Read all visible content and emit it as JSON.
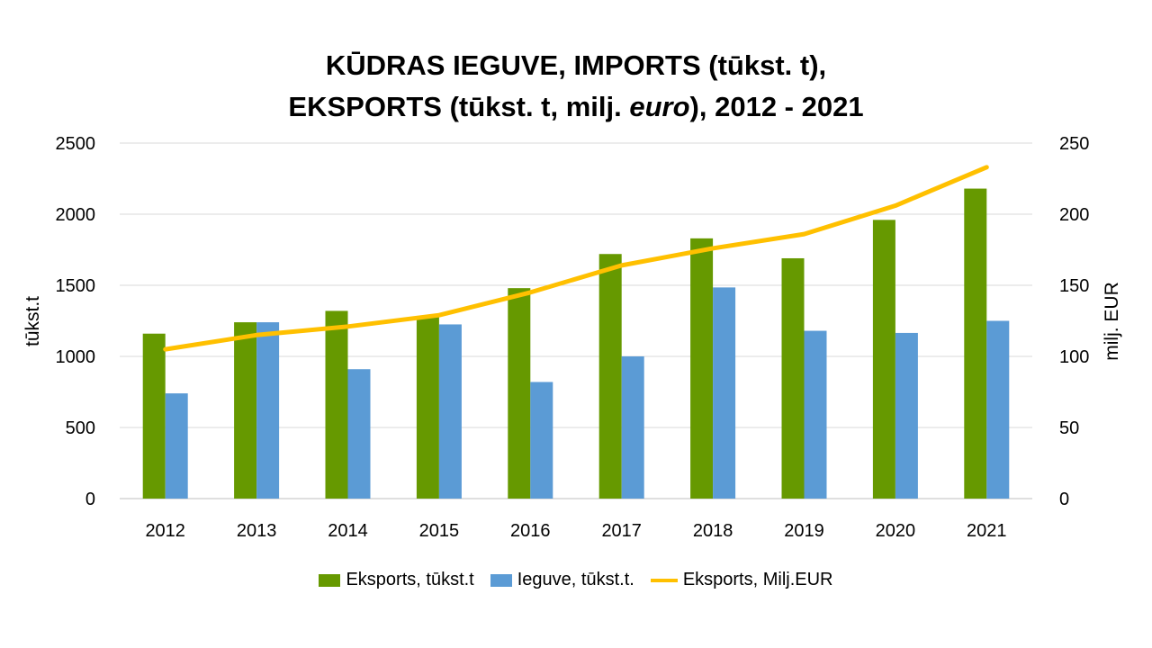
{
  "chart_data": {
    "type": "bar",
    "title_line1": "KŪDRAS IEGUVE, IMPORTS (tūkst. t),",
    "title_line2_a": "EKSPORTS (tūkst. t, milj. ",
    "title_line2_em": "euro",
    "title_line2_b": "), 2012 - 2021",
    "ylabel": "tūkst.t",
    "y2label": "milj. EUR",
    "ylim": [
      0,
      2500
    ],
    "y2lim": [
      0,
      250
    ],
    "yticks": [
      "0",
      "500",
      "1000",
      "1500",
      "2000",
      "2500"
    ],
    "y2ticks": [
      "0",
      "50",
      "100",
      "150",
      "200",
      "250"
    ],
    "grid": true,
    "legend_position": "bottom",
    "categories": [
      "2012",
      "2013",
      "2014",
      "2015",
      "2016",
      "2017",
      "2018",
      "2019",
      "2020",
      "2021"
    ],
    "series": [
      {
        "name": "Eksports, tūkst.t",
        "type": "bar",
        "axis": "left",
        "color": "#669900",
        "values": [
          1160,
          1240,
          1320,
          1280,
          1480,
          1720,
          1830,
          1690,
          1960,
          2180
        ]
      },
      {
        "name": "Ieguve, tūkst.t.",
        "type": "bar",
        "axis": "left",
        "color": "#5B9BD5",
        "values": [
          740,
          1240,
          910,
          1225,
          820,
          1000,
          1485,
          1180,
          1165,
          1250
        ]
      },
      {
        "name": "Eksports, Milj.EUR",
        "type": "line",
        "axis": "right",
        "color": "#FFC000",
        "values": [
          105,
          115,
          121,
          129,
          145,
          164,
          176,
          186,
          206,
          233
        ]
      }
    ]
  }
}
